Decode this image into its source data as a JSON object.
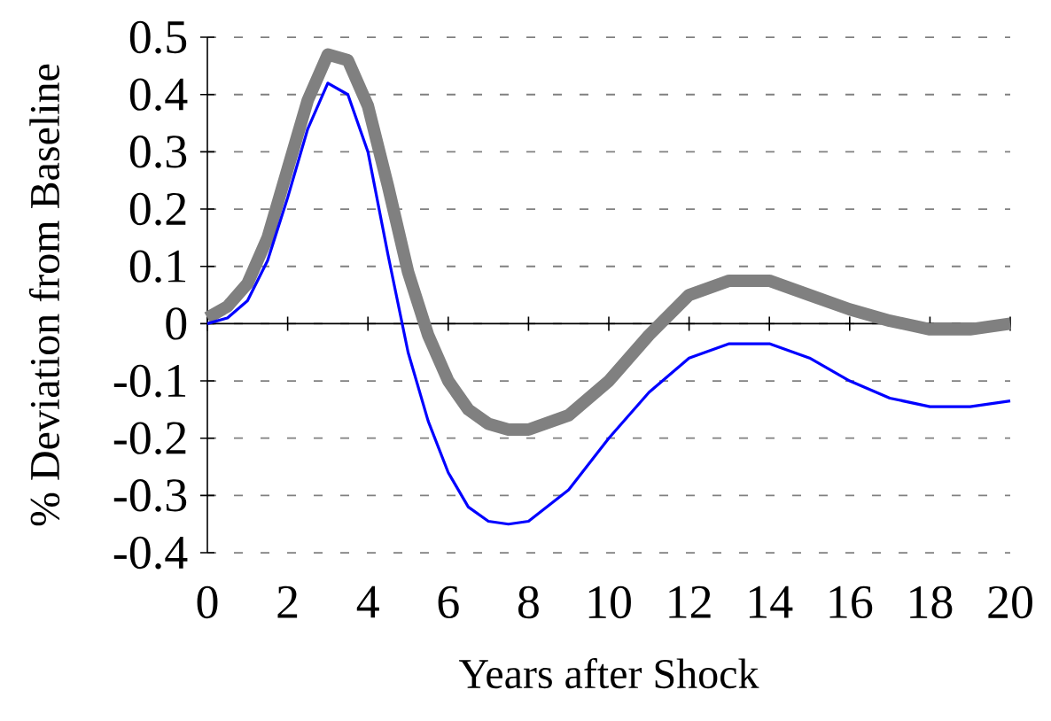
{
  "chart_data": {
    "type": "line",
    "xlabel": "Years after Shock",
    "ylabel": "% Deviation from Baseline",
    "xlim": [
      0,
      20
    ],
    "xticks": [
      0,
      2,
      4,
      6,
      8,
      10,
      12,
      14,
      16,
      18,
      20
    ],
    "ylim": [
      -0.4,
      0.5
    ],
    "yticks": [
      -0.4,
      -0.3,
      -0.2,
      -0.1,
      0,
      0.1,
      0.2,
      0.3,
      0.4,
      0.5
    ],
    "grid": "y",
    "legend": false,
    "marker": "none",
    "line_style": "solid",
    "series": [
      {
        "color": "#808080",
        "x": [
          0,
          0.5,
          1,
          1.5,
          2,
          2.5,
          3,
          3.5,
          4,
          4.5,
          5,
          5.5,
          6,
          6.5,
          7,
          7.5,
          8,
          9,
          10,
          11,
          12,
          13,
          14,
          15,
          16,
          17,
          18,
          19,
          20
        ],
        "values": [
          0.01,
          0.03,
          0.07,
          0.15,
          0.27,
          0.39,
          0.47,
          0.46,
          0.38,
          0.24,
          0.09,
          -0.02,
          -0.1,
          -0.15,
          -0.175,
          -0.185,
          -0.185,
          -0.16,
          -0.1,
          -0.02,
          0.05,
          0.075,
          0.075,
          0.05,
          0.025,
          0.005,
          -0.01,
          -0.01,
          0.0
        ]
      },
      {
        "color": "#0000ff",
        "x": [
          0,
          0.5,
          1,
          1.5,
          2,
          2.5,
          3,
          3.5,
          4,
          4.5,
          5,
          5.5,
          6,
          6.5,
          7,
          7.5,
          8,
          9,
          10,
          11,
          12,
          13,
          14,
          15,
          16,
          17,
          18,
          19,
          20
        ],
        "values": [
          0,
          0.01,
          0.04,
          0.11,
          0.22,
          0.34,
          0.42,
          0.4,
          0.3,
          0.12,
          -0.05,
          -0.17,
          -0.26,
          -0.32,
          -0.345,
          -0.35,
          -0.345,
          -0.29,
          -0.2,
          -0.12,
          -0.06,
          -0.035,
          -0.035,
          -0.06,
          -0.1,
          -0.13,
          -0.145,
          -0.145,
          -0.135
        ]
      }
    ]
  }
}
